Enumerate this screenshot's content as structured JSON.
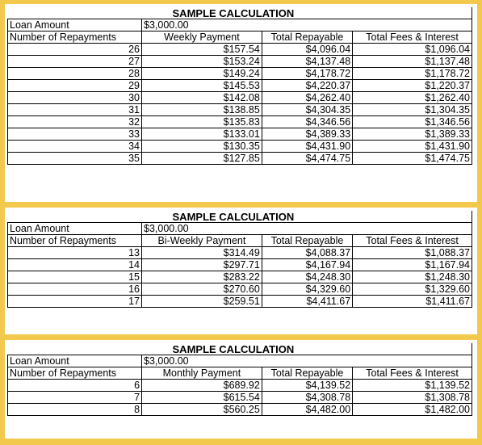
{
  "tables": [
    {
      "title": "SAMPLE CALCULATION",
      "loan_label": "Loan Amount",
      "loan_value": "$3,000.00",
      "repay_label": "Number of Repayments",
      "headers": [
        "Weekly Payment",
        "Total Repayable",
        "Total Fees & Interest"
      ],
      "rows": [
        [
          "26",
          "$157.54",
          "$4,096.04",
          "$1,096.04"
        ],
        [
          "27",
          "$153.24",
          "$4,137.48",
          "$1,137.48"
        ],
        [
          "28",
          "$149.24",
          "$4,178.72",
          "$1,178.72"
        ],
        [
          "29",
          "$145.53",
          "$4,220.37",
          "$1,220.37"
        ],
        [
          "30",
          "$142.08",
          "$4,262.40",
          "$1,262.40"
        ],
        [
          "31",
          "$138.85",
          "$4,304.35",
          "$1,304.35"
        ],
        [
          "32",
          "$135.83",
          "$4,346.56",
          "$1,346.56"
        ],
        [
          "33",
          "$133.01",
          "$4,389.33",
          "$1,389.33"
        ],
        [
          "34",
          "$130.35",
          "$4,431.90",
          "$1,431.90"
        ],
        [
          "35",
          "$127.85",
          "$4,474.75",
          "$1,474.75"
        ]
      ]
    },
    {
      "title": "SAMPLE CALCULATION",
      "loan_label": "Loan Amount",
      "loan_value": "$3,000.00",
      "repay_label": "Number of Repayments",
      "headers": [
        "Bi-Weekly Payment",
        "Total Repayable",
        "Total Fees & Interest"
      ],
      "rows": [
        [
          "13",
          "$314.49",
          "$4,088.37",
          "$1,088.37"
        ],
        [
          "14",
          "$297.71",
          "$4,167.94",
          "$1,167.94"
        ],
        [
          "15",
          "$283.22",
          "$4,248.30",
          "$1,248.30"
        ],
        [
          "16",
          "$270.60",
          "$4,329.60",
          "$1,329.60"
        ],
        [
          "17",
          "$259.51",
          "$4,411.67",
          "$1,411.67"
        ]
      ]
    },
    {
      "title": "SAMPLE CALCULATION",
      "loan_label": "Loan Amount",
      "loan_value": "$3,000.00",
      "repay_label": "Number of Repayments",
      "headers": [
        "Monthly Payment",
        "Total Repayable",
        "Total Fees & Interest"
      ],
      "rows": [
        [
          "6",
          "$689.92",
          "$4,139.52",
          "$1,139.52"
        ],
        [
          "7",
          "$615.54",
          "$4,308.78",
          "$1,308.78"
        ],
        [
          "8",
          "$560.25",
          "$4,482.00",
          "$1,482.00"
        ]
      ]
    }
  ]
}
